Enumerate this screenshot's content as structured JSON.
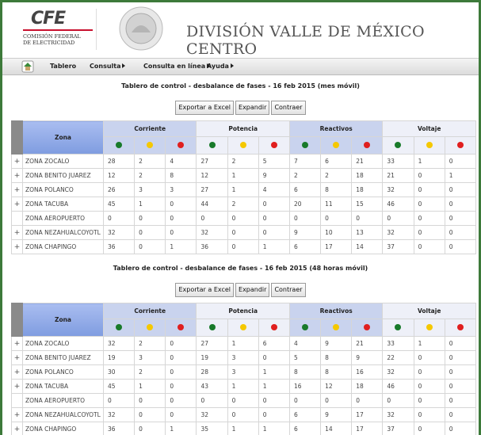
{
  "header": {
    "logo": "CFE",
    "org_line1": "COMISIÓN FEDERAL",
    "org_line2": "DE ELECTRICIDAD",
    "title": "DIVISIÓN VALLE DE MÉXICO CENTRO"
  },
  "menu": [
    "Tablero",
    "Consulta",
    "Consulta en línea",
    "Ayuda"
  ],
  "panels": [
    {
      "title": "Tablero de control - desbalance de fases - 16 feb 2015 (mes móvil)",
      "buttons": [
        "Exportar a Excel",
        "Expandir",
        "Contraer"
      ],
      "zona_header": "Zona",
      "groups": [
        "Corriente",
        "Potencia",
        "Reactivos",
        "Voltaje"
      ],
      "rows": [
        {
          "expand": "+",
          "zona": "ZONA ZOCALO",
          "values": [
            28,
            2,
            4,
            27,
            2,
            5,
            7,
            6,
            21,
            33,
            1,
            0
          ]
        },
        {
          "expand": "+",
          "zona": "ZONA BENITO JUAREZ",
          "values": [
            12,
            2,
            8,
            12,
            1,
            9,
            2,
            2,
            18,
            21,
            0,
            1
          ]
        },
        {
          "expand": "+",
          "zona": "ZONA POLANCO",
          "values": [
            26,
            3,
            3,
            27,
            1,
            4,
            6,
            8,
            18,
            32,
            0,
            0
          ]
        },
        {
          "expand": "+",
          "zona": "ZONA TACUBA",
          "values": [
            45,
            1,
            0,
            44,
            2,
            0,
            20,
            11,
            15,
            46,
            0,
            0
          ]
        },
        {
          "zona": "ZONA AEROPUERTO",
          "values": [
            0,
            0,
            0,
            0,
            0,
            0,
            0,
            0,
            0,
            0,
            0,
            0
          ]
        },
        {
          "expand": "+",
          "zona": "ZONA NEZAHUALCOYOTL",
          "values": [
            32,
            0,
            0,
            32,
            0,
            0,
            9,
            10,
            13,
            32,
            0,
            0
          ]
        },
        {
          "expand": "+",
          "zona": "ZONA CHAPINGO",
          "values": [
            36,
            0,
            1,
            36,
            0,
            1,
            6,
            17,
            14,
            37,
            0,
            0
          ]
        }
      ]
    },
    {
      "title": "Tablero de control - desbalance de fases - 16 feb 2015 (48 horas móvil)",
      "buttons": [
        "Exportar a Excel",
        "Expandir",
        "Contraer"
      ],
      "zona_header": "Zona",
      "groups": [
        "Corriente",
        "Potencia",
        "Reactivos",
        "Voltaje"
      ],
      "rows": [
        {
          "expand": "+",
          "zona": "ZONA ZOCALO",
          "values": [
            32,
            2,
            0,
            27,
            1,
            6,
            4,
            9,
            21,
            33,
            1,
            0
          ]
        },
        {
          "expand": "+",
          "zona": "ZONA BENITO JUAREZ",
          "values": [
            19,
            3,
            0,
            19,
            3,
            0,
            5,
            8,
            9,
            22,
            0,
            0
          ]
        },
        {
          "expand": "+",
          "zona": "ZONA POLANCO",
          "values": [
            30,
            2,
            0,
            28,
            3,
            1,
            8,
            8,
            16,
            32,
            0,
            0
          ]
        },
        {
          "expand": "+",
          "zona": "ZONA TACUBA",
          "values": [
            45,
            1,
            0,
            43,
            1,
            1,
            16,
            12,
            18,
            46,
            0,
            0
          ]
        },
        {
          "zona": "ZONA AEROPUERTO",
          "values": [
            0,
            0,
            0,
            0,
            0,
            0,
            0,
            0,
            0,
            0,
            0,
            0
          ]
        },
        {
          "expand": "+",
          "zona": "ZONA NEZAHUALCOYOTL",
          "values": [
            32,
            0,
            0,
            32,
            0,
            0,
            6,
            9,
            17,
            32,
            0,
            0
          ]
        },
        {
          "expand": "+",
          "zona": "ZONA CHAPINGO",
          "values": [
            36,
            0,
            1,
            35,
            1,
            1,
            6,
            14,
            17,
            37,
            0,
            0
          ]
        }
      ]
    }
  ]
}
